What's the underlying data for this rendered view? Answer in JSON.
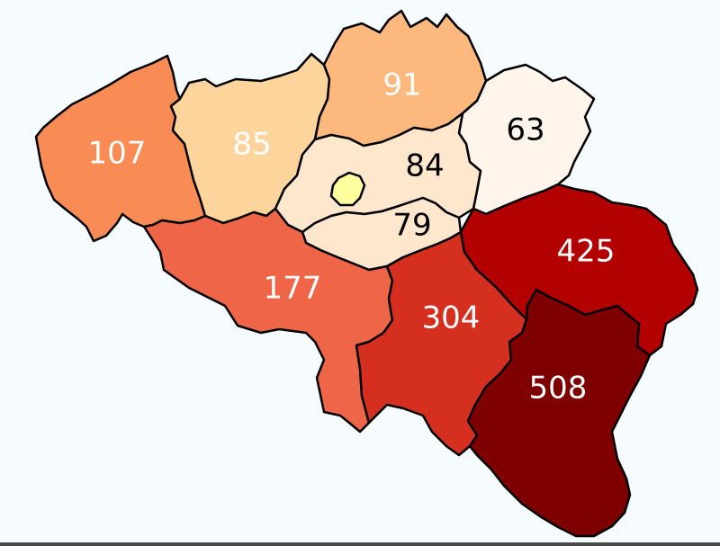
{
  "map": {
    "regions": [
      {
        "id": "west-flanders",
        "value": "107",
        "fill": "#f98c55",
        "label_color": "#ffffff"
      },
      {
        "id": "east-flanders",
        "value": "85",
        "fill": "#fdd49c",
        "label_color": "#ffffff"
      },
      {
        "id": "antwerp",
        "value": "91",
        "fill": "#fcb87d",
        "label_color": "#ffffff"
      },
      {
        "id": "limburg",
        "value": "63",
        "fill": "#fff5eb",
        "label_color": "#000000"
      },
      {
        "id": "flemish-brabant",
        "value": "84",
        "fill": "#fee7cc",
        "label_color": "#000000"
      },
      {
        "id": "brussels",
        "value": "",
        "fill": "#ffff9e",
        "label_color": "#000000"
      },
      {
        "id": "walloon-brabant",
        "value": "79",
        "fill": "#fee7cc",
        "label_color": "#000000"
      },
      {
        "id": "hainaut",
        "value": "177",
        "fill": "#ee6548",
        "label_color": "#ffffff"
      },
      {
        "id": "namur",
        "value": "304",
        "fill": "#d5301f",
        "label_color": "#ffffff"
      },
      {
        "id": "liege",
        "value": "425",
        "fill": "#b30000",
        "label_color": "#ffffff"
      },
      {
        "id": "luxembourg",
        "value": "508",
        "fill": "#7f0000",
        "label_color": "#ffffff"
      }
    ]
  }
}
